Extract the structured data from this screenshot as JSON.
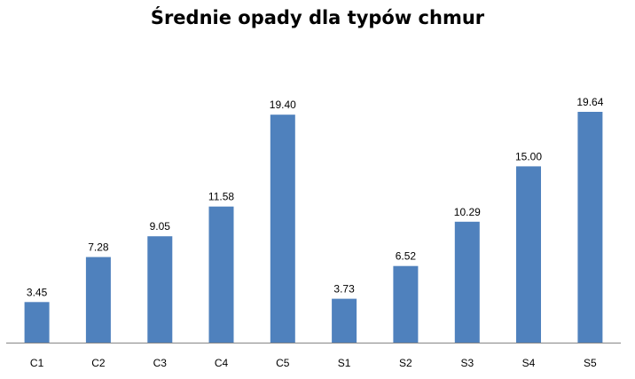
{
  "chart_data": {
    "type": "bar",
    "title": "Średnie opady dla typów chmur",
    "xlabel": "",
    "ylabel": "",
    "categories": [
      "C1",
      "C2",
      "C3",
      "C4",
      "C5",
      "S1",
      "S2",
      "S3",
      "S4",
      "S5"
    ],
    "values": [
      3.45,
      7.28,
      9.05,
      11.58,
      19.4,
      3.73,
      6.52,
      10.29,
      15.0,
      19.64
    ],
    "value_labels": [
      "3.45",
      "7.28",
      "9.05",
      "11.58",
      "19.40",
      "3.73",
      "6.52",
      "10.29",
      "15.00",
      "19.64"
    ],
    "ylim": [
      0,
      20
    ],
    "grid": false,
    "legend": "none",
    "bar_color": "#4f81bd",
    "axis_color": "#868686"
  }
}
